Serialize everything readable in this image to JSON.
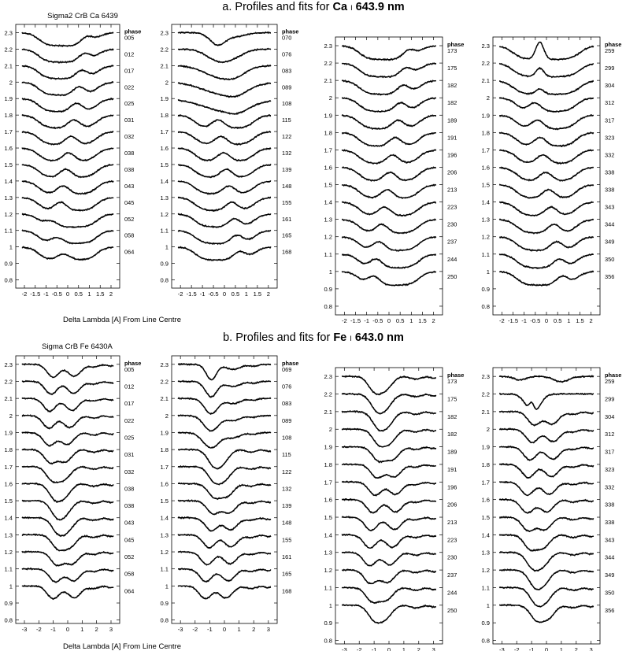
{
  "figure": {
    "title_a": "a. Profiles and fits for",
    "title_a_element": "Ca",
    "title_a_ion": "I",
    "title_a_wavelength": "643.9 nm",
    "title_b": "b. Profiles and fits for",
    "title_b_element": "Fe",
    "title_b_ion": "I",
    "title_b_wavelength": "643.0 nm",
    "subtitle_a": "Sigma2 CrB Ca 6439",
    "subtitle_b": "Sigma CrB Fe 6430A",
    "xlabel": "Delta Lambda [A] From Line Centre",
    "phase_header": "phase"
  },
  "chart_data": [
    {
      "type": "line",
      "panel": "a1",
      "line": "Ca I 643.9 nm",
      "xlim": [
        -2.4,
        2.4
      ],
      "ylim": [
        0.75,
        2.35
      ],
      "x_ticks": [
        "-2",
        "-1.5",
        "-1",
        "-0.5",
        "0",
        "0.5",
        "1",
        "1.5",
        "2"
      ],
      "y_ticks": [
        "0.8",
        "0.9",
        "1",
        "1.1",
        "1.2",
        "1.3",
        "1.4",
        "1.5",
        "1.6",
        "1.7",
        "1.8",
        "1.9",
        "2",
        "2.1",
        "2.2",
        "2.3"
      ],
      "phases": [
        "005",
        "012",
        "017",
        "022",
        "025",
        "031",
        "032",
        "038",
        "038",
        "043",
        "045",
        "052",
        "058",
        "064"
      ]
    },
    {
      "type": "line",
      "panel": "a2",
      "line": "Ca I 643.9 nm",
      "xlim": [
        -2.4,
        2.4
      ],
      "ylim": [
        0.75,
        2.35
      ],
      "x_ticks": [
        "-2",
        "-1.5",
        "-1",
        "-0.5",
        "0",
        "0.5",
        "1",
        "1.5",
        "2"
      ],
      "y_ticks": [
        "0.8",
        "0.9",
        "1",
        "1.1",
        "1.2",
        "1.3",
        "1.4",
        "1.5",
        "1.6",
        "1.7",
        "1.8",
        "1.9",
        "2",
        "2.1",
        "2.2",
        "2.3"
      ],
      "phases": [
        "070",
        "076",
        "083",
        "089",
        "108",
        "115",
        "122",
        "132",
        "139",
        "148",
        "155",
        "161",
        "165",
        "168"
      ]
    },
    {
      "type": "line",
      "panel": "a3",
      "line": "Ca I 643.9 nm",
      "xlim": [
        -2.4,
        2.4
      ],
      "ylim": [
        0.75,
        2.35
      ],
      "x_ticks": [
        "-2",
        "-1.5",
        "-1",
        "-0.5",
        "0",
        "0.5",
        "1",
        "1.5",
        "2"
      ],
      "y_ticks": [
        "0.8",
        "0.9",
        "1",
        "1.1",
        "1.2",
        "1.3",
        "1.4",
        "1.5",
        "1.6",
        "1.7",
        "1.8",
        "1.9",
        "2",
        "2.1",
        "2.2",
        "2.3"
      ],
      "phases": [
        "173",
        "175",
        "182",
        "182",
        "189",
        "191",
        "196",
        "206",
        "213",
        "223",
        "230",
        "237",
        "244",
        "250"
      ]
    },
    {
      "type": "line",
      "panel": "a4",
      "line": "Ca I 643.9 nm",
      "xlim": [
        -2.4,
        2.4
      ],
      "ylim": [
        0.75,
        2.35
      ],
      "x_ticks": [
        "-2",
        "-1.5",
        "-1",
        "-0.5",
        "0",
        "0.5",
        "1",
        "1.5",
        "2"
      ],
      "y_ticks": [
        "0.8",
        "0.9",
        "1",
        "1.1",
        "1.2",
        "1.3",
        "1.4",
        "1.5",
        "1.6",
        "1.7",
        "1.8",
        "1.9",
        "2",
        "2.1",
        "2.2",
        "2.3"
      ],
      "phases": [
        "259",
        "299",
        "304",
        "312",
        "317",
        "323",
        "332",
        "338",
        "338",
        "343",
        "344",
        "349",
        "350",
        "356"
      ]
    },
    {
      "type": "line",
      "panel": "b1",
      "line": "Fe I 643.0 nm",
      "xlim": [
        -3.6,
        3.6
      ],
      "ylim": [
        0.78,
        2.35
      ],
      "x_ticks": [
        "-3",
        "-2",
        "-1",
        "0",
        "1",
        "2",
        "3"
      ],
      "y_ticks": [
        "0.8",
        "0.9",
        "1",
        "1.1",
        "1.2",
        "1.3",
        "1.4",
        "1.5",
        "1.6",
        "1.7",
        "1.8",
        "1.9",
        "2",
        "2.1",
        "2.2",
        "2.3"
      ],
      "phases": [
        "005",
        "012",
        "017",
        "022",
        "025",
        "031",
        "032",
        "038",
        "038",
        "043",
        "045",
        "052",
        "058",
        "064"
      ]
    },
    {
      "type": "line",
      "panel": "b2",
      "line": "Fe I 643.0 nm",
      "xlim": [
        -3.6,
        3.6
      ],
      "ylim": [
        0.78,
        2.35
      ],
      "x_ticks": [
        "-3",
        "-2",
        "-1",
        "0",
        "1",
        "2",
        "3"
      ],
      "y_ticks": [
        "0.8",
        "0.9",
        "1",
        "1.1",
        "1.2",
        "1.3",
        "1.4",
        "1.5",
        "1.6",
        "1.7",
        "1.8",
        "1.9",
        "2",
        "2.1",
        "2.2",
        "2.3"
      ],
      "phases": [
        "069",
        "076",
        "083",
        "089",
        "108",
        "115",
        "122",
        "132",
        "139",
        "148",
        "155",
        "161",
        "165",
        "168"
      ]
    },
    {
      "type": "line",
      "panel": "b3",
      "line": "Fe I 643.0 nm",
      "xlim": [
        -3.6,
        3.6
      ],
      "ylim": [
        0.78,
        2.35
      ],
      "x_ticks": [
        "-3",
        "-2",
        "-1",
        "0",
        "1",
        "2",
        "3"
      ],
      "y_ticks": [
        "0.8",
        "0.9",
        "1",
        "1.1",
        "1.2",
        "1.3",
        "1.4",
        "1.5",
        "1.6",
        "1.7",
        "1.8",
        "1.9",
        "2",
        "2.1",
        "2.2",
        "2.3"
      ],
      "phases": [
        "173",
        "175",
        "182",
        "182",
        "189",
        "191",
        "196",
        "206",
        "213",
        "223",
        "230",
        "237",
        "244",
        "250"
      ]
    },
    {
      "type": "line",
      "panel": "b4",
      "line": "Fe I 643.0 nm",
      "xlim": [
        -3.6,
        3.6
      ],
      "ylim": [
        0.78,
        2.35
      ],
      "x_ticks": [
        "-3",
        "-2",
        "-1",
        "0",
        "1",
        "2",
        "3"
      ],
      "y_ticks": [
        "0.8",
        "0.9",
        "1",
        "1.1",
        "1.2",
        "1.3",
        "1.4",
        "1.5",
        "1.6",
        "1.7",
        "1.8",
        "1.9",
        "2",
        "2.1",
        "2.2",
        "2.3"
      ],
      "phases": [
        "259",
        "299",
        "304",
        "312",
        "317",
        "323",
        "332",
        "338",
        "338",
        "343",
        "344",
        "349",
        "350",
        "356"
      ]
    }
  ]
}
